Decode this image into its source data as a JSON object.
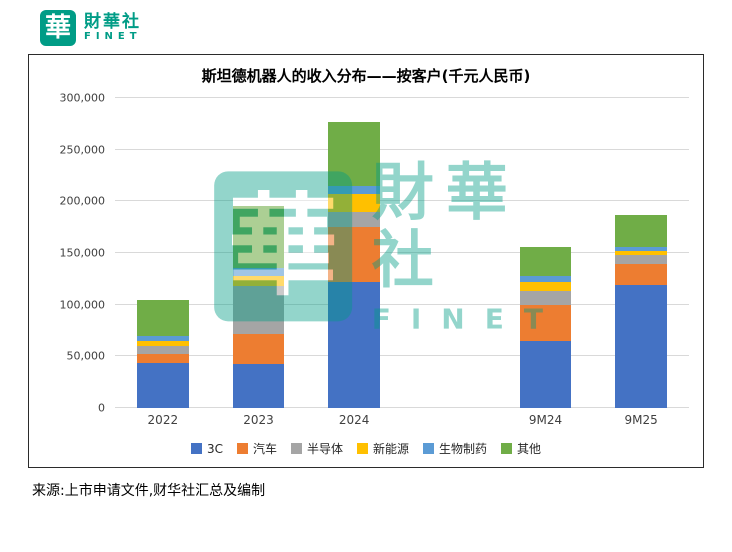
{
  "brand": {
    "mark": "華",
    "name_cn": "財華社",
    "name_en": "FINET"
  },
  "watermark": {
    "mark": "華",
    "name_cn": "財華社",
    "name_en": "FINET"
  },
  "source": "来源:上市申请文件,财华社汇总及编制",
  "chart_data": {
    "type": "bar",
    "stacked": true,
    "title": "斯坦德机器人的收入分布——按客户(千元人民币)",
    "categories": [
      "2022",
      "2023",
      "2024",
      "9M24",
      "9M25"
    ],
    "series": [
      {
        "name": "3C",
        "color": "#4472C4",
        "values": [
          44000,
          43000,
          122000,
          65000,
          119000
        ]
      },
      {
        "name": "汽车",
        "color": "#ED7D31",
        "values": [
          8000,
          29000,
          53000,
          35000,
          20000
        ]
      },
      {
        "name": "半导体",
        "color": "#A5A5A5",
        "values": [
          8000,
          46000,
          15000,
          13000,
          9000
        ]
      },
      {
        "name": "新能源",
        "color": "#FFC000",
        "values": [
          5000,
          10000,
          17000,
          9000,
          4000
        ]
      },
      {
        "name": "生物制药",
        "color": "#5B9BD5",
        "values": [
          5000,
          8000,
          8000,
          6000,
          4000
        ]
      },
      {
        "name": "其他",
        "color": "#70AD47",
        "values": [
          35000,
          60000,
          62000,
          28000,
          31000
        ]
      }
    ],
    "ylim": [
      0,
      300000
    ],
    "ytick_step": 50000,
    "ytick_labels": [
      "0",
      "50,000",
      "100,000",
      "150,000",
      "200,000",
      "250,000",
      "300,000"
    ],
    "grid": true,
    "legend_position": "bottom",
    "gap_slot_after_category_index": 2,
    "accent_color": "#009c86"
  }
}
